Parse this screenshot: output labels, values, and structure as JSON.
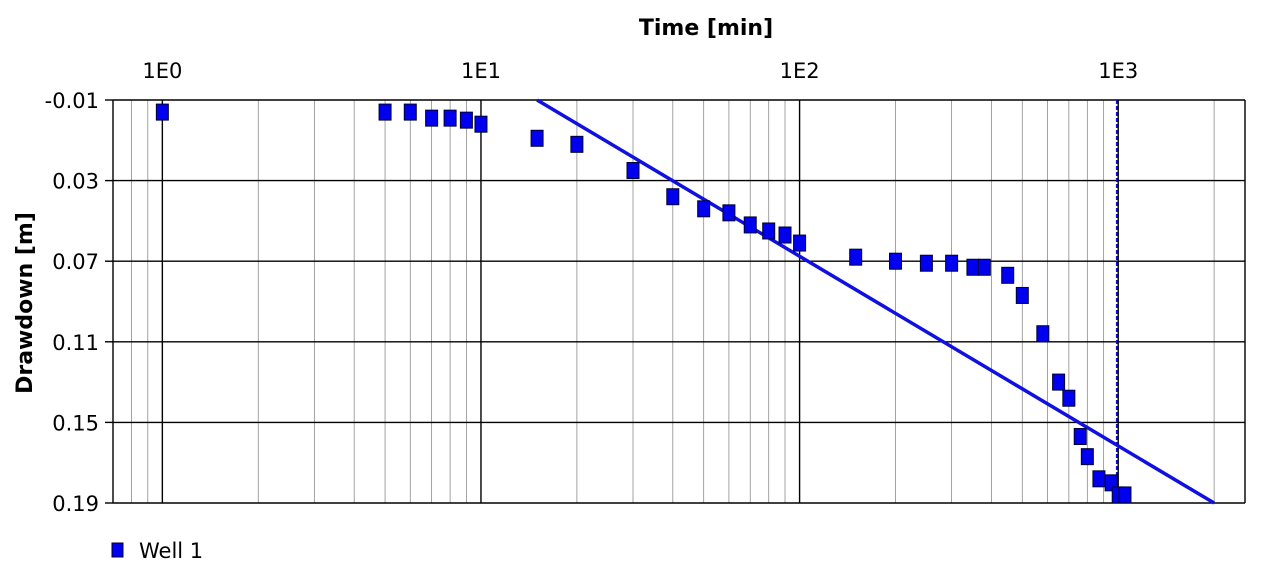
{
  "chart_data": {
    "type": "scatter",
    "xlabel": "Time [min]",
    "ylabel": "Drawdown [m]",
    "x_scale": "log",
    "x_position": "top",
    "y_inverted": true,
    "xlim": [
      0.7,
      2500
    ],
    "ylim": [
      -0.01,
      0.19
    ],
    "x_tick_labels": [
      {
        "value": 1,
        "label": "1E0"
      },
      {
        "value": 10,
        "label": "1E1"
      },
      {
        "value": 100,
        "label": "1E2"
      },
      {
        "value": 1000,
        "label": "1E3"
      }
    ],
    "y_tick_labels": [
      {
        "value": -0.01,
        "label": "-0.01"
      },
      {
        "value": 0.03,
        "label": "0.03"
      },
      {
        "value": 0.07,
        "label": "0.07"
      },
      {
        "value": 0.11,
        "label": "0.11"
      },
      {
        "value": 0.15,
        "label": "0.15"
      },
      {
        "value": 0.19,
        "label": "0.19"
      }
    ],
    "grid": true,
    "legend_position": "bottom-left",
    "series": [
      {
        "name": "Well 1",
        "color": "#0000ee",
        "marker": "square",
        "points": [
          [
            1,
            -0.004
          ],
          [
            5,
            -0.004
          ],
          [
            6,
            -0.004
          ],
          [
            7,
            -0.001
          ],
          [
            8,
            -0.001
          ],
          [
            9,
            0.0
          ],
          [
            10,
            0.002
          ],
          [
            15,
            0.009
          ],
          [
            20,
            0.012
          ],
          [
            30,
            0.025
          ],
          [
            40,
            0.038
          ],
          [
            50,
            0.044
          ],
          [
            60,
            0.046
          ],
          [
            70,
            0.052
          ],
          [
            80,
            0.055
          ],
          [
            90,
            0.057
          ],
          [
            100,
            0.061
          ],
          [
            150,
            0.068
          ],
          [
            200,
            0.07
          ],
          [
            250,
            0.071
          ],
          [
            300,
            0.071
          ],
          [
            350,
            0.073
          ],
          [
            380,
            0.073
          ],
          [
            450,
            0.077
          ],
          [
            500,
            0.087
          ],
          [
            580,
            0.106
          ],
          [
            650,
            0.13
          ],
          [
            700,
            0.138
          ],
          [
            760,
            0.157
          ],
          [
            800,
            0.167
          ],
          [
            870,
            0.178
          ],
          [
            950,
            0.18
          ],
          [
            1000,
            0.186
          ],
          [
            1050,
            0.186
          ]
        ]
      }
    ],
    "fit_line": {
      "color": "#1010e0",
      "points": [
        [
          15,
          -0.01
        ],
        [
          2000,
          0.19
        ]
      ]
    },
    "vertical_marker": {
      "x": 1000,
      "color": "#1010e0",
      "style": "dashed"
    }
  }
}
